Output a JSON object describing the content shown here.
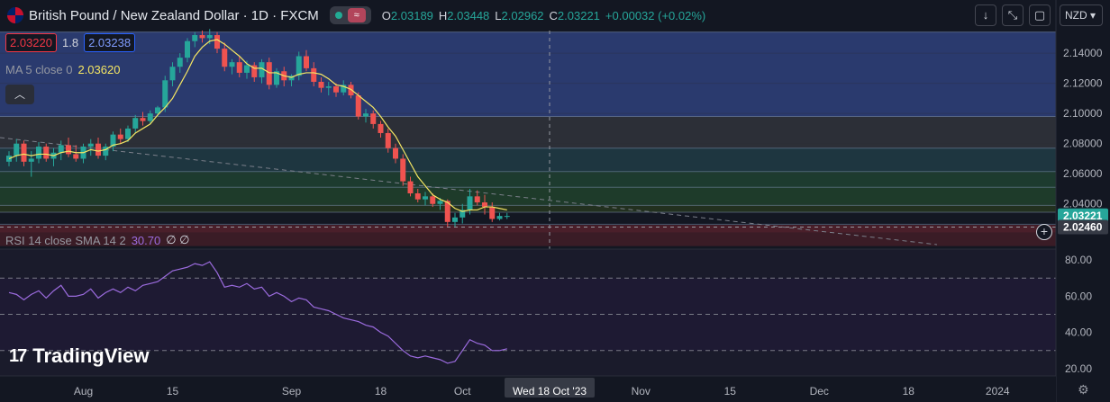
{
  "header": {
    "symbol": "British Pound / New Zealand Dollar · 1D · FXCM",
    "ohlc": [
      {
        "k": "O",
        "v": "2.03189"
      },
      {
        "k": "H",
        "v": "2.03448"
      },
      {
        "k": "L",
        "v": "2.02962"
      },
      {
        "k": "C",
        "v": "2.03221"
      }
    ],
    "change": "+0.00032 (+0.02%)"
  },
  "quote": {
    "sell": "2.03220",
    "spread": "1.8",
    "buy": "2.03238"
  },
  "ma_legend": {
    "label": "MA 5 close 0",
    "value": "2.03620"
  },
  "rsi_legend": {
    "label": "RSI 14 close SMA 14 2",
    "value": "30.70",
    "extra": "∅ ∅"
  },
  "currency": "NZD",
  "logo_text": "TradingView",
  "crosshair_label": "Wed 18 Oct '23",
  "colors": {
    "bg": "#131722",
    "up": "#26a69a",
    "down": "#ef5350",
    "ma": "#f5e663",
    "rsi": "#9b6bde",
    "grid": "#2a2e39"
  },
  "chart_data": [
    {
      "type": "candlestick",
      "title": "British Pound / New Zealand Dollar · 1D · FXCM",
      "ylim": [
        2.01,
        2.155
      ],
      "y_ticks": [
        2.14,
        2.12,
        2.1,
        2.08,
        2.06,
        2.04
      ],
      "y_tick_labels": [
        "2.14000",
        "2.12000",
        "2.10000",
        "2.08000",
        "2.06000",
        "2.04000"
      ],
      "last_price_label": "2.03221",
      "crosshair_price_label": "2.02460",
      "crosshair_price": 2.0246,
      "zones": [
        {
          "from": 2.098,
          "to": 2.154,
          "color": "#2a3a6e"
        },
        {
          "from": 2.077,
          "to": 2.098,
          "color": "#2c2f37"
        },
        {
          "from": 2.0615,
          "to": 2.077,
          "color": "#1e3640"
        },
        {
          "from": 2.051,
          "to": 2.0615,
          "color": "#1d3b2f"
        },
        {
          "from": 2.039,
          "to": 2.051,
          "color": "#1e3b2a"
        },
        {
          "from": 2.0345,
          "to": 2.039,
          "color": "#22301f"
        },
        {
          "from": 2.021,
          "to": 2.026,
          "color": "#4a1f2a"
        },
        {
          "from": 2.012,
          "to": 2.021,
          "color": "#3a1c26"
        }
      ],
      "level_lines": [
        2.154,
        2.098,
        2.077,
        2.0615,
        2.051,
        2.039,
        2.0345,
        2.0265
      ],
      "candles": [
        {
          "x": 0,
          "o": 2.068,
          "h": 2.075,
          "l": 2.065,
          "c": 2.072
        },
        {
          "x": 1,
          "o": 2.072,
          "h": 2.083,
          "l": 2.068,
          "c": 2.08
        },
        {
          "x": 2,
          "o": 2.08,
          "h": 2.082,
          "l": 2.065,
          "c": 2.068
        },
        {
          "x": 3,
          "o": 2.068,
          "h": 2.075,
          "l": 2.058,
          "c": 2.07
        },
        {
          "x": 4,
          "o": 2.07,
          "h": 2.081,
          "l": 2.067,
          "c": 2.078
        },
        {
          "x": 5,
          "o": 2.078,
          "h": 2.08,
          "l": 2.068,
          "c": 2.07
        },
        {
          "x": 6,
          "o": 2.07,
          "h": 2.077,
          "l": 2.065,
          "c": 2.074
        },
        {
          "x": 7,
          "o": 2.074,
          "h": 2.082,
          "l": 2.069,
          "c": 2.079
        },
        {
          "x": 8,
          "o": 2.079,
          "h": 2.084,
          "l": 2.071,
          "c": 2.073
        },
        {
          "x": 9,
          "o": 2.073,
          "h": 2.079,
          "l": 2.068,
          "c": 2.07
        },
        {
          "x": 10,
          "o": 2.07,
          "h": 2.08,
          "l": 2.067,
          "c": 2.078
        },
        {
          "x": 11,
          "o": 2.078,
          "h": 2.083,
          "l": 2.072,
          "c": 2.08
        },
        {
          "x": 12,
          "o": 2.08,
          "h": 2.084,
          "l": 2.07,
          "c": 2.072
        },
        {
          "x": 13,
          "o": 2.072,
          "h": 2.08,
          "l": 2.069,
          "c": 2.078
        },
        {
          "x": 14,
          "o": 2.078,
          "h": 2.088,
          "l": 2.075,
          "c": 2.086
        },
        {
          "x": 15,
          "o": 2.086,
          "h": 2.09,
          "l": 2.08,
          "c": 2.083
        },
        {
          "x": 16,
          "o": 2.083,
          "h": 2.092,
          "l": 2.081,
          "c": 2.09
        },
        {
          "x": 17,
          "o": 2.09,
          "h": 2.099,
          "l": 2.087,
          "c": 2.097
        },
        {
          "x": 18,
          "o": 2.097,
          "h": 2.101,
          "l": 2.092,
          "c": 2.095
        },
        {
          "x": 19,
          "o": 2.095,
          "h": 2.102,
          "l": 2.093,
          "c": 2.1
        },
        {
          "x": 20,
          "o": 2.1,
          "h": 2.105,
          "l": 2.098,
          "c": 2.104
        },
        {
          "x": 21,
          "o": 2.104,
          "h": 2.125,
          "l": 2.101,
          "c": 2.122
        },
        {
          "x": 22,
          "o": 2.122,
          "h": 2.134,
          "l": 2.118,
          "c": 2.131
        },
        {
          "x": 23,
          "o": 2.131,
          "h": 2.14,
          "l": 2.127,
          "c": 2.137
        },
        {
          "x": 24,
          "o": 2.137,
          "h": 2.15,
          "l": 2.134,
          "c": 2.148
        },
        {
          "x": 25,
          "o": 2.148,
          "h": 2.154,
          "l": 2.144,
          "c": 2.152
        },
        {
          "x": 26,
          "o": 2.152,
          "h": 2.155,
          "l": 2.147,
          "c": 2.15
        },
        {
          "x": 27,
          "o": 2.15,
          "h": 2.156,
          "l": 2.146,
          "c": 2.152
        },
        {
          "x": 28,
          "o": 2.152,
          "h": 2.154,
          "l": 2.14,
          "c": 2.143
        },
        {
          "x": 29,
          "o": 2.143,
          "h": 2.147,
          "l": 2.128,
          "c": 2.131
        },
        {
          "x": 30,
          "o": 2.131,
          "h": 2.136,
          "l": 2.126,
          "c": 2.134
        },
        {
          "x": 31,
          "o": 2.134,
          "h": 2.138,
          "l": 2.124,
          "c": 2.127
        },
        {
          "x": 32,
          "o": 2.127,
          "h": 2.135,
          "l": 2.123,
          "c": 2.132
        },
        {
          "x": 33,
          "o": 2.132,
          "h": 2.134,
          "l": 2.121,
          "c": 2.124
        },
        {
          "x": 34,
          "o": 2.124,
          "h": 2.136,
          "l": 2.12,
          "c": 2.134
        },
        {
          "x": 35,
          "o": 2.134,
          "h": 2.137,
          "l": 2.116,
          "c": 2.119
        },
        {
          "x": 36,
          "o": 2.119,
          "h": 2.13,
          "l": 2.117,
          "c": 2.128
        },
        {
          "x": 37,
          "o": 2.128,
          "h": 2.131,
          "l": 2.118,
          "c": 2.122
        },
        {
          "x": 38,
          "o": 2.122,
          "h": 2.126,
          "l": 2.118,
          "c": 2.125
        },
        {
          "x": 39,
          "o": 2.125,
          "h": 2.141,
          "l": 2.122,
          "c": 2.138
        },
        {
          "x": 40,
          "o": 2.138,
          "h": 2.142,
          "l": 2.128,
          "c": 2.13
        },
        {
          "x": 41,
          "o": 2.13,
          "h": 2.134,
          "l": 2.118,
          "c": 2.121
        },
        {
          "x": 42,
          "o": 2.121,
          "h": 2.124,
          "l": 2.114,
          "c": 2.117
        },
        {
          "x": 43,
          "o": 2.117,
          "h": 2.121,
          "l": 2.112,
          "c": 2.118
        },
        {
          "x": 44,
          "o": 2.118,
          "h": 2.12,
          "l": 2.111,
          "c": 2.114
        },
        {
          "x": 45,
          "o": 2.114,
          "h": 2.122,
          "l": 2.112,
          "c": 2.119
        },
        {
          "x": 46,
          "o": 2.119,
          "h": 2.121,
          "l": 2.11,
          "c": 2.112
        },
        {
          "x": 47,
          "o": 2.112,
          "h": 2.114,
          "l": 2.096,
          "c": 2.098
        },
        {
          "x": 48,
          "o": 2.098,
          "h": 2.103,
          "l": 2.094,
          "c": 2.1
        },
        {
          "x": 49,
          "o": 2.1,
          "h": 2.102,
          "l": 2.09,
          "c": 2.093
        },
        {
          "x": 50,
          "o": 2.093,
          "h": 2.095,
          "l": 2.084,
          "c": 2.087
        },
        {
          "x": 51,
          "o": 2.087,
          "h": 2.09,
          "l": 2.074,
          "c": 2.077
        },
        {
          "x": 52,
          "o": 2.077,
          "h": 2.08,
          "l": 2.067,
          "c": 2.07
        },
        {
          "x": 53,
          "o": 2.07,
          "h": 2.073,
          "l": 2.052,
          "c": 2.055
        },
        {
          "x": 54,
          "o": 2.055,
          "h": 2.058,
          "l": 2.045,
          "c": 2.047
        },
        {
          "x": 55,
          "o": 2.047,
          "h": 2.05,
          "l": 2.041,
          "c": 2.043
        },
        {
          "x": 56,
          "o": 2.043,
          "h": 2.048,
          "l": 2.039,
          "c": 2.045
        },
        {
          "x": 57,
          "o": 2.045,
          "h": 2.047,
          "l": 2.038,
          "c": 2.04
        },
        {
          "x": 58,
          "o": 2.04,
          "h": 2.044,
          "l": 2.036,
          "c": 2.042
        },
        {
          "x": 59,
          "o": 2.042,
          "h": 2.043,
          "l": 2.025,
          "c": 2.028
        },
        {
          "x": 60,
          "o": 2.028,
          "h": 2.034,
          "l": 2.025,
          "c": 2.031
        },
        {
          "x": 61,
          "o": 2.031,
          "h": 2.04,
          "l": 2.027,
          "c": 2.036
        },
        {
          "x": 62,
          "o": 2.036,
          "h": 2.05,
          "l": 2.033,
          "c": 2.045
        },
        {
          "x": 63,
          "o": 2.045,
          "h": 2.049,
          "l": 2.039,
          "c": 2.041
        },
        {
          "x": 64,
          "o": 2.041,
          "h": 2.046,
          "l": 2.033,
          "c": 2.038
        },
        {
          "x": 65,
          "o": 2.038,
          "h": 2.041,
          "l": 2.028,
          "c": 2.03
        },
        {
          "x": 66,
          "o": 2.03,
          "h": 2.034,
          "l": 2.029,
          "c": 2.032
        },
        {
          "x": 67,
          "o": 2.032,
          "h": 2.034,
          "l": 2.03,
          "c": 2.032
        }
      ],
      "ma5": [
        2.07,
        2.072,
        2.073,
        2.072,
        2.073,
        2.073,
        2.072,
        2.074,
        2.075,
        2.074,
        2.074,
        2.076,
        2.075,
        2.076,
        2.079,
        2.08,
        2.082,
        2.087,
        2.09,
        2.093,
        2.099,
        2.104,
        2.11,
        2.119,
        2.128,
        2.138,
        2.144,
        2.148,
        2.149,
        2.146,
        2.142,
        2.138,
        2.133,
        2.13,
        2.13,
        2.127,
        2.127,
        2.125,
        2.124,
        2.126,
        2.127,
        2.127,
        2.126,
        2.123,
        2.119,
        2.118,
        2.116,
        2.112,
        2.108,
        2.104,
        2.098,
        2.091,
        2.085,
        2.076,
        2.067,
        2.058,
        2.052,
        2.046,
        2.043,
        2.041,
        2.037,
        2.035,
        2.036,
        2.036,
        2.038,
        2.038,
        2.037,
        2.036
      ]
    },
    {
      "type": "line",
      "title": "RSI 14 close SMA 14 2",
      "ylim": [
        16,
        86
      ],
      "y_ticks": [
        80,
        60,
        40,
        20
      ],
      "y_tick_labels": [
        "80.00",
        "60.00",
        "40.00",
        "20.00"
      ],
      "bands": [
        70,
        50,
        30
      ],
      "values": [
        62,
        61,
        58,
        61,
        63,
        59,
        63,
        66,
        60,
        60,
        61,
        64,
        59,
        62,
        64,
        62,
        65,
        63,
        66,
        67,
        68,
        71,
        74,
        75,
        76,
        78,
        77,
        79,
        73,
        65,
        66,
        65,
        67,
        64,
        65,
        60,
        62,
        60,
        57,
        59,
        58,
        54,
        53,
        52,
        50,
        48,
        47,
        46,
        44,
        43,
        40,
        38,
        34,
        30,
        27,
        26,
        27,
        26,
        25,
        23,
        24,
        30,
        36,
        34,
        33,
        30,
        30,
        31
      ]
    },
    {
      "type": "time_axis",
      "x_tick_labels": [
        "Aug",
        "15",
        "Sep",
        "18",
        "Oct",
        "Nov",
        "15",
        "Dec",
        "18",
        "2024"
      ]
    }
  ]
}
